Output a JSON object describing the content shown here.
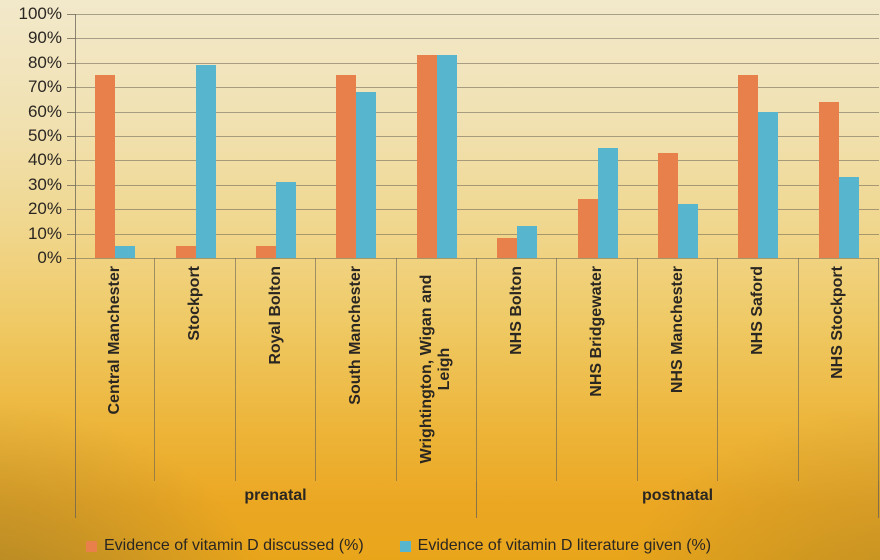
{
  "chart_data": {
    "type": "bar",
    "title": "",
    "categories": [
      "Central Manchester",
      "Stockport",
      "Royal Bolton",
      "South Manchester",
      "Wrightington, Wigan and Leigh",
      "NHS Bolton",
      "NHS Bridgewater",
      "NHS Manchester",
      "NHS Saford",
      "NHS Stockport"
    ],
    "groups": [
      {
        "label": "prenatal",
        "span": 5
      },
      {
        "label": "postnatal",
        "span": 5
      }
    ],
    "series": [
      {
        "name": "Evidence of vitamin D discussed (%)",
        "color": "#E8804C",
        "values": [
          75,
          5,
          5,
          75,
          83,
          8,
          24,
          43,
          75,
          64
        ]
      },
      {
        "name": "Evidence of vitamin D literature given (%)",
        "color": "#58B5CE",
        "values": [
          5,
          79,
          31,
          68,
          83,
          13,
          45,
          22,
          60,
          33
        ]
      }
    ],
    "y_axis": {
      "min": 0,
      "max": 100,
      "step": 10,
      "tick_labels": [
        "100%",
        "90%",
        "80%",
        "70%",
        "60%",
        "50%",
        "40%",
        "30%",
        "20%",
        "10%",
        "0%"
      ]
    },
    "grid": true,
    "legend_position": "bottom"
  },
  "colors": {
    "background_top": "#F2E9CB",
    "background_bottom": "#E9A51A",
    "gridline": "#68624F",
    "text": "#2A2622"
  }
}
